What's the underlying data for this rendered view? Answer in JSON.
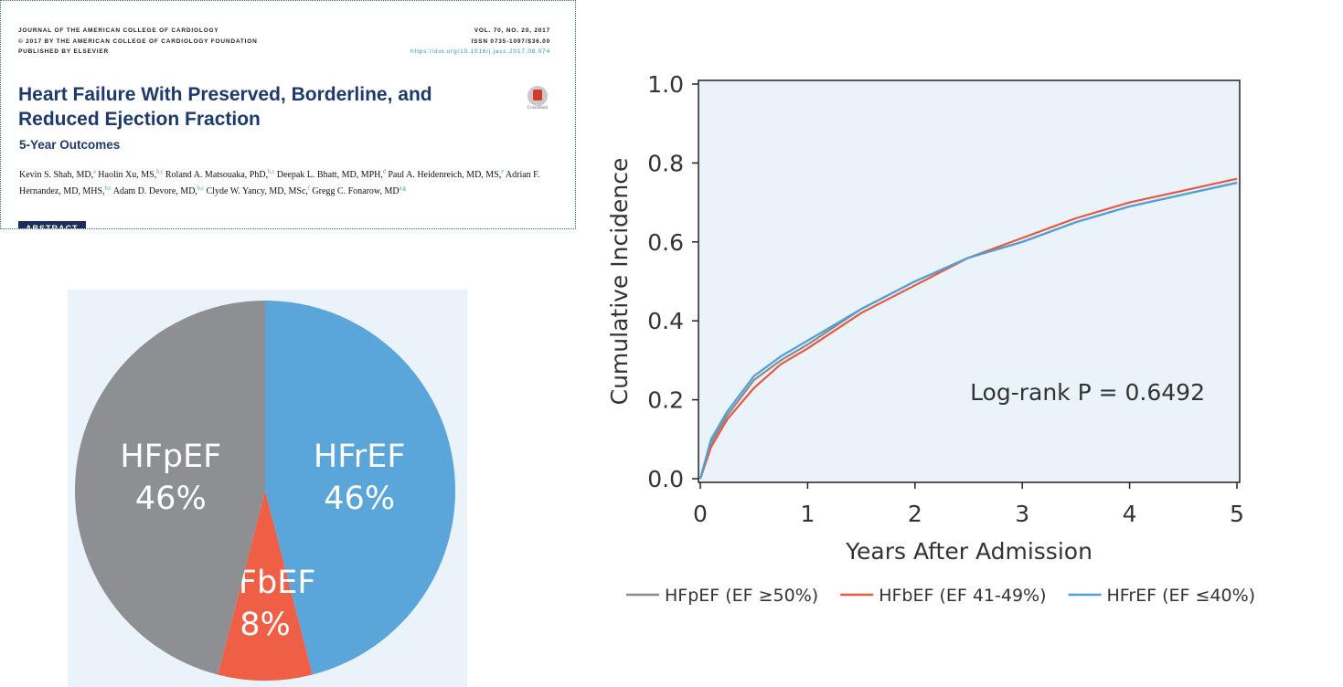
{
  "paper": {
    "journal_lines": [
      "JOURNAL OF THE AMERICAN COLLEGE OF CARDIOLOGY",
      "© 2017 BY THE AMERICAN COLLEGE OF CARDIOLOGY FOUNDATION",
      "PUBLISHED BY ELSEVIER"
    ],
    "issue_lines": [
      "VOL. 70, NO. 20, 2017",
      "ISSN 0735-1097/$36.00",
      "https://doi.org/10.1016/j.jacc.2017.08.074"
    ],
    "title": "Heart Failure With Preserved, Borderline, and Reduced Ejection Fraction",
    "subtitle": "5-Year Outcomes",
    "crossmark": "CrossMark",
    "authors": [
      {
        "name": "Kevin S. Shah, MD,",
        "sup": "a"
      },
      {
        "name": "Haolin Xu, MS,",
        "sup": "b,c"
      },
      {
        "name": "Roland A. Matsouaka, PhD,",
        "sup": "b,c"
      },
      {
        "name": "Deepak L. Bhatt, MD, MPH,",
        "sup": "d"
      },
      {
        "name": "Paul A. Heidenreich, MD, MS,",
        "sup": "e"
      },
      {
        "name": "Adrian F. Hernandez, MD, MHS,",
        "sup": "b,c"
      },
      {
        "name": "Adam D. Devore, MD,",
        "sup": "b,c"
      },
      {
        "name": "Clyde W. Yancy, MD, MSc,",
        "sup": "f"
      },
      {
        "name": "Gregg C. Fonarow, MD",
        "sup": "a,g"
      }
    ],
    "section": "ABSTRACT"
  },
  "chart_data": [
    {
      "type": "pie",
      "categories": [
        "HFrEF",
        "HFbEF",
        "HFpEF"
      ],
      "values": [
        46,
        8,
        46
      ],
      "value_labels": [
        "46%",
        "8%",
        "46%"
      ],
      "colors": [
        "#5aa6da",
        "#ef5f45",
        "#8e8f92"
      ]
    },
    {
      "type": "line",
      "x": [
        0,
        0.1,
        0.25,
        0.5,
        0.75,
        1,
        1.5,
        2,
        2.5,
        3,
        3.5,
        4,
        4.5,
        5
      ],
      "series": [
        {
          "name": "HFpEF (EF ≥50%)",
          "color": "#8a8a8a",
          "values": [
            0,
            0.09,
            0.16,
            0.25,
            0.3,
            0.34,
            0.43,
            0.5,
            0.56,
            0.6,
            0.65,
            0.69,
            0.72,
            0.75
          ]
        },
        {
          "name": "HFbEF (EF 41-49%)",
          "color": "#e8583e",
          "values": [
            0,
            0.08,
            0.15,
            0.23,
            0.29,
            0.33,
            0.42,
            0.49,
            0.56,
            0.61,
            0.66,
            0.7,
            0.73,
            0.76
          ]
        },
        {
          "name": "HFrEF (EF ≤40%)",
          "color": "#4fa0d8",
          "values": [
            0,
            0.1,
            0.17,
            0.26,
            0.31,
            0.35,
            0.43,
            0.5,
            0.56,
            0.6,
            0.65,
            0.69,
            0.72,
            0.75
          ]
        }
      ],
      "xlim": [
        0,
        5
      ],
      "xticks": [
        0,
        1,
        2,
        3,
        4,
        5
      ],
      "ylim": [
        0,
        1
      ],
      "yticks": [
        {
          "value": 0,
          "label": "0.0"
        },
        0.2,
        0.4,
        0.6,
        0.8,
        {
          "value": 1,
          "label": "1.0"
        }
      ],
      "xlabel": "Years After Admission",
      "ylabel": "Cumulative Incidence",
      "annotation": "Log-rank P = 0.6492"
    }
  ]
}
